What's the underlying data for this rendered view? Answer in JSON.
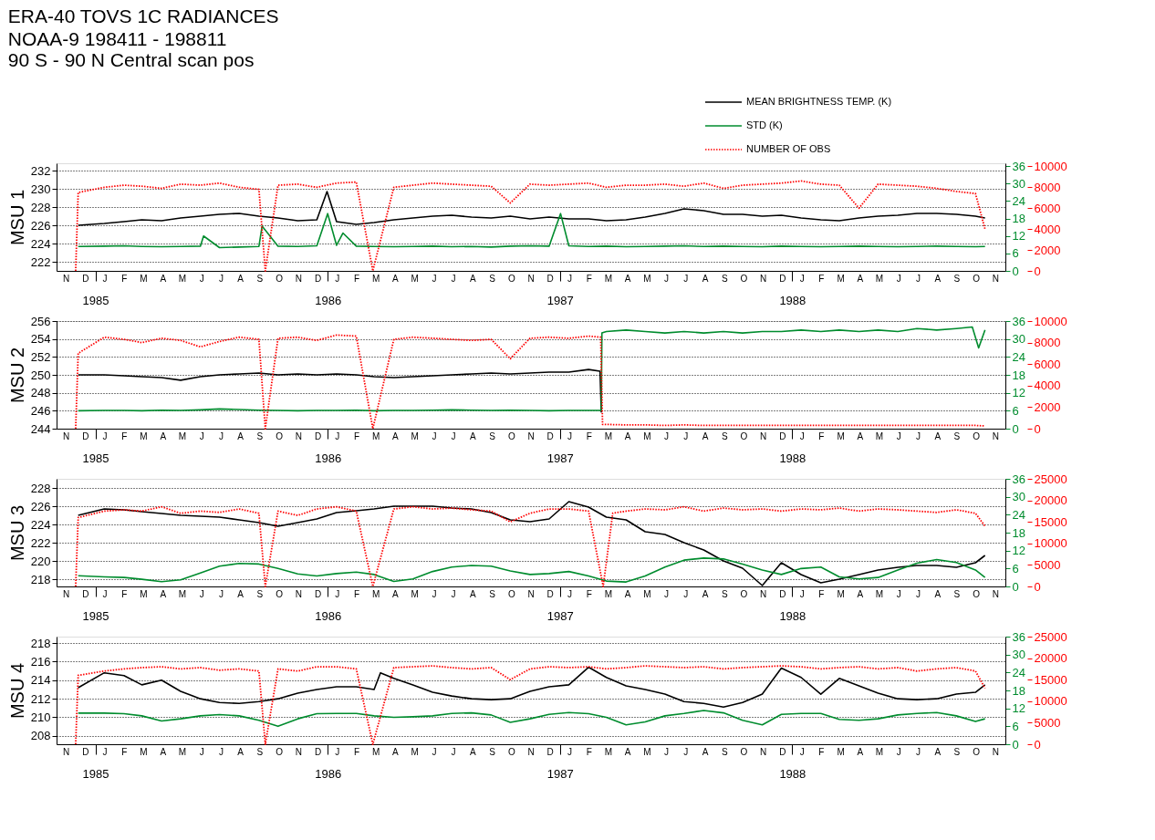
{
  "chart_data": [
    {
      "type": "line",
      "title": "ERA-40  TOVS 1C RADIANCES",
      "subtitle": "NOAA-9   198411 - 198811\n90 S - 90 N        Central scan pos",
      "ylabel": "MSU 1",
      "legend": "top right",
      "grid": "y",
      "marker": "none",
      "xlim": [
        "1984-11-01",
        "1988-12-01"
      ],
      "xticks": [
        {
          "value": "1985-01-01",
          "label": "1985"
        },
        {
          "value": "1986-01-01",
          "label": "1986"
        },
        {
          "value": "1987-01-01",
          "label": "1987"
        },
        {
          "value": "1988-01-01",
          "label": "1988"
        }
      ],
      "annotations": [
        "N",
        "D",
        "J",
        "F",
        "M",
        "A",
        "M",
        "J",
        "J",
        "A",
        "S",
        "O",
        "N",
        "D",
        "J",
        "F",
        "M",
        "A",
        "M",
        "J",
        "J",
        "A",
        "S",
        "O",
        "N",
        "D",
        "J",
        "F",
        "M",
        "A",
        "M",
        "J",
        "J",
        "A",
        "S",
        "O",
        "N",
        "D",
        "J",
        "F",
        "M",
        "A",
        "M",
        "J",
        "J",
        "A",
        "S",
        "O",
        "N"
      ],
      "ylim": [
        221,
        232.8
      ],
      "yticks": [
        222,
        224,
        226,
        228,
        230,
        232
      ],
      "y2lim": [
        0,
        37
      ],
      "y2ticks": [
        0,
        6,
        12,
        18,
        24,
        30,
        36
      ],
      "y3lim": [
        0,
        10300
      ],
      "y3ticks": [
        0,
        2000,
        4000,
        6000,
        8000,
        10000
      ],
      "series": [
        {
          "name": "MEAN BRIGHTNESS TEMP. (K)",
          "color": "#000000",
          "x": [
            "1984-12-05",
            "1985-01-15",
            "1985-02-15",
            "1985-03-15",
            "1985-04-15",
            "1985-05-15",
            "1985-06-15",
            "1985-07-15",
            "1985-08-15",
            "1985-09-15",
            "1985-10-15",
            "1985-11-15",
            "1985-12-15",
            "1985-12-31",
            "1986-01-15",
            "1986-02-15",
            "1986-03-15",
            "1986-04-15",
            "1986-05-15",
            "1986-06-15",
            "1986-07-15",
            "1986-08-15",
            "1986-09-15",
            "1986-10-15",
            "1986-11-15",
            "1986-12-15",
            "1987-01-15",
            "1987-02-15",
            "1987-03-15",
            "1987-04-15",
            "1987-05-15",
            "1987-06-15",
            "1987-07-15",
            "1987-08-15",
            "1987-09-15",
            "1987-10-15",
            "1987-11-15",
            "1987-12-15",
            "1988-01-15",
            "1988-02-15",
            "1988-03-15",
            "1988-04-15",
            "1988-05-15",
            "1988-06-15",
            "1988-07-15",
            "1988-08-15",
            "1988-09-15",
            "1988-10-15",
            "1988-10-30"
          ],
          "values": [
            226.0,
            226.2,
            226.4,
            226.6,
            226.5,
            226.8,
            227.0,
            227.2,
            227.3,
            227.0,
            226.8,
            226.5,
            226.6,
            229.7,
            226.4,
            226.1,
            226.3,
            226.6,
            226.8,
            227.0,
            227.1,
            226.9,
            226.8,
            227.0,
            226.7,
            226.9,
            226.7,
            226.7,
            226.5,
            226.6,
            226.9,
            227.3,
            227.8,
            227.6,
            227.2,
            227.2,
            227.0,
            227.1,
            226.8,
            226.6,
            226.5,
            226.8,
            227.0,
            227.1,
            227.3,
            227.3,
            227.2,
            227.0,
            226.8
          ]
        },
        {
          "name": "STD (K)",
          "color": "#008c2e",
          "axis": "y2",
          "x": [
            "1984-12-05",
            "1985-01-15",
            "1985-02-15",
            "1985-03-15",
            "1985-04-15",
            "1985-05-15",
            "1985-06-15",
            "1985-06-20",
            "1985-07-15",
            "1985-08-15",
            "1985-09-15",
            "1985-09-20",
            "1985-10-15",
            "1985-11-15",
            "1985-12-15",
            "1986-01-01",
            "1986-01-15",
            "1986-01-25",
            "1986-02-15",
            "1986-03-15",
            "1986-04-15",
            "1986-05-15",
            "1986-06-15",
            "1986-07-15",
            "1986-08-15",
            "1986-09-15",
            "1986-10-15",
            "1986-11-15",
            "1986-12-15",
            "1987-01-02",
            "1987-01-15",
            "1987-02-15",
            "1987-03-15",
            "1987-04-15",
            "1987-05-15",
            "1987-06-15",
            "1987-07-15",
            "1987-08-15",
            "1987-09-15",
            "1987-10-15",
            "1987-11-15",
            "1987-12-15",
            "1988-01-15",
            "1988-02-15",
            "1988-03-15",
            "1988-04-15",
            "1988-05-15",
            "1988-06-15",
            "1988-07-15",
            "1988-08-15",
            "1988-09-15",
            "1988-10-15",
            "1988-10-30"
          ],
          "values": [
            8.4,
            8.5,
            8.6,
            8.4,
            8.3,
            8.4,
            8.5,
            12.0,
            8.0,
            8.2,
            8.4,
            15.4,
            8.5,
            8.4,
            8.6,
            19.7,
            8.8,
            13.0,
            8.5,
            8.4,
            8.3,
            8.4,
            8.5,
            8.3,
            8.4,
            8.2,
            8.5,
            8.6,
            8.5,
            19.7,
            8.6,
            8.4,
            8.5,
            8.3,
            8.4,
            8.5,
            8.6,
            8.4,
            8.5,
            8.4,
            8.3,
            8.5,
            8.4,
            8.3,
            8.4,
            8.5,
            8.4,
            8.3,
            8.4,
            8.5,
            8.4,
            8.3,
            8.4
          ]
        },
        {
          "name": "NUMBER OF OBS",
          "color": "#ff0000",
          "axis": "y3",
          "line_style": "dotted",
          "x": [
            "1984-12-01",
            "1984-12-05",
            "1985-01-15",
            "1985-02-15",
            "1985-03-15",
            "1985-04-15",
            "1985-05-15",
            "1985-06-15",
            "1985-07-15",
            "1985-08-15",
            "1985-09-15",
            "1985-09-25",
            "1985-10-15",
            "1985-11-15",
            "1985-12-15",
            "1986-01-15",
            "1986-02-15",
            "1986-03-13",
            "1986-04-15",
            "1986-05-15",
            "1986-06-15",
            "1986-07-15",
            "1986-08-15",
            "1986-09-15",
            "1986-10-15",
            "1986-11-15",
            "1986-12-15",
            "1987-01-15",
            "1987-02-15",
            "1987-03-15",
            "1987-04-15",
            "1987-05-15",
            "1987-06-15",
            "1987-07-15",
            "1987-08-15",
            "1987-09-15",
            "1987-10-15",
            "1987-11-15",
            "1987-12-15",
            "1988-01-15",
            "1988-02-15",
            "1988-03-15",
            "1988-04-15",
            "1988-05-15",
            "1988-06-15",
            "1988-07-15",
            "1988-08-15",
            "1988-09-15",
            "1988-10-15",
            "1988-10-30"
          ],
          "values": [
            0,
            7500,
            8000,
            8200,
            8100,
            7900,
            8300,
            8200,
            8400,
            8000,
            7800,
            0,
            8200,
            8300,
            8000,
            8400,
            8500,
            0,
            8000,
            8200,
            8400,
            8300,
            8200,
            8100,
            6500,
            8300,
            8200,
            8300,
            8400,
            8000,
            8200,
            8200,
            8300,
            8100,
            8400,
            7900,
            8200,
            8300,
            8400,
            8600,
            8300,
            8200,
            6000,
            8300,
            8200,
            8100,
            7900,
            7600,
            7400,
            4000
          ]
        }
      ]
    },
    {
      "type": "line",
      "ylabel": "MSU 2",
      "grid": "y",
      "marker": "none",
      "xlim": [
        "1984-11-01",
        "1988-12-01"
      ],
      "xticks": [
        {
          "value": "1985-01-01",
          "label": "1985"
        },
        {
          "value": "1986-01-01",
          "label": "1986"
        },
        {
          "value": "1987-01-01",
          "label": "1987"
        },
        {
          "value": "1988-01-01",
          "label": "1988"
        }
      ],
      "annotations": [
        "N",
        "D",
        "J",
        "F",
        "M",
        "A",
        "M",
        "J",
        "J",
        "A",
        "S",
        "O",
        "N",
        "D",
        "J",
        "F",
        "M",
        "A",
        "M",
        "J",
        "J",
        "A",
        "S",
        "O",
        "N",
        "D",
        "J",
        "F",
        "M",
        "A",
        "M",
        "J",
        "J",
        "A",
        "S",
        "O",
        "N",
        "D",
        "J",
        "F",
        "M",
        "A",
        "M",
        "J",
        "J",
        "A",
        "S",
        "O",
        "N"
      ],
      "ylim": [
        244,
        256
      ],
      "yticks": [
        244,
        246,
        248,
        250,
        252,
        254,
        256
      ],
      "y2lim": [
        0,
        36
      ],
      "y2ticks": [
        0,
        6,
        12,
        18,
        24,
        30,
        36
      ],
      "y3lim": [
        0,
        10000
      ],
      "y3ticks": [
        0,
        2000,
        4000,
        6000,
        8000,
        10000
      ],
      "series": [
        {
          "color": "#000000",
          "x": [
            "1984-12-05",
            "1985-01-15",
            "1985-02-15",
            "1985-03-15",
            "1985-04-15",
            "1985-05-15",
            "1985-06-15",
            "1985-07-15",
            "1985-08-15",
            "1985-09-15",
            "1985-10-15",
            "1985-11-15",
            "1985-12-15",
            "1986-01-15",
            "1986-02-15",
            "1986-03-15",
            "1986-04-15",
            "1986-05-15",
            "1986-06-15",
            "1986-07-15",
            "1986-08-15",
            "1986-09-15",
            "1986-10-15",
            "1986-11-15",
            "1986-12-15",
            "1987-01-15",
            "1987-02-15",
            "1987-03-05",
            "1987-03-07"
          ],
          "values": [
            250.0,
            250.0,
            249.9,
            249.8,
            249.7,
            249.4,
            249.8,
            250.0,
            250.1,
            250.2,
            250.0,
            250.1,
            250.0,
            250.1,
            250.0,
            249.8,
            249.7,
            249.8,
            249.9,
            250.0,
            250.1,
            250.2,
            250.1,
            250.2,
            250.3,
            250.3,
            250.6,
            250.4,
            245.8
          ]
        },
        {
          "color": "#008c2e",
          "axis": "y2",
          "x": [
            "1984-12-05",
            "1985-01-15",
            "1985-02-15",
            "1985-03-15",
            "1985-04-15",
            "1985-05-15",
            "1985-06-15",
            "1985-07-15",
            "1985-08-15",
            "1985-09-15",
            "1985-10-15",
            "1985-11-15",
            "1985-12-15",
            "1986-01-15",
            "1986-02-15",
            "1986-03-15",
            "1986-04-15",
            "1986-05-15",
            "1986-06-15",
            "1986-07-15",
            "1986-08-15",
            "1986-09-15",
            "1986-10-15",
            "1986-11-15",
            "1986-12-15",
            "1987-01-15",
            "1987-02-15",
            "1987-03-07",
            "1987-03-08",
            "1987-03-15",
            "1987-04-15",
            "1987-05-15",
            "1987-06-15",
            "1987-07-15",
            "1987-08-15",
            "1987-09-15",
            "1987-10-15",
            "1987-11-15",
            "1987-12-15",
            "1988-01-15",
            "1988-02-15",
            "1988-03-15",
            "1988-04-15",
            "1988-05-15",
            "1988-06-15",
            "1988-07-15",
            "1988-08-15",
            "1988-09-15",
            "1988-10-10",
            "1988-10-20",
            "1988-10-30"
          ],
          "values": [
            6.0,
            6.1,
            6.1,
            6.0,
            6.2,
            6.1,
            6.3,
            6.6,
            6.4,
            6.2,
            6.1,
            6.0,
            6.1,
            6.1,
            6.2,
            6.0,
            6.1,
            6.1,
            6.2,
            6.3,
            6.2,
            6.1,
            6.2,
            6.1,
            6.0,
            6.1,
            6.1,
            6.1,
            32.0,
            32.5,
            33.0,
            32.5,
            32.0,
            32.5,
            32.0,
            32.5,
            32.0,
            32.5,
            32.5,
            33.0,
            32.5,
            33.0,
            32.5,
            33.0,
            32.5,
            33.5,
            33.0,
            33.5,
            34.0,
            27.0,
            33.0
          ]
        },
        {
          "color": "#ff0000",
          "axis": "y3",
          "line_style": "dotted",
          "x": [
            "1984-12-01",
            "1984-12-05",
            "1985-01-15",
            "1985-02-15",
            "1985-03-15",
            "1985-04-15",
            "1985-05-15",
            "1985-06-15",
            "1985-07-15",
            "1985-08-15",
            "1985-09-15",
            "1985-09-25",
            "1985-10-15",
            "1985-11-15",
            "1985-12-15",
            "1986-01-15",
            "1986-02-15",
            "1986-03-13",
            "1986-04-15",
            "1986-05-15",
            "1986-06-15",
            "1986-07-15",
            "1986-08-15",
            "1986-09-15",
            "1986-10-15",
            "1986-11-15",
            "1986-12-15",
            "1987-01-15",
            "1987-02-15",
            "1987-03-06",
            "1987-03-09",
            "1987-04-15",
            "1987-05-15",
            "1987-06-15",
            "1987-07-15",
            "1987-08-15",
            "1987-09-15",
            "1987-10-15",
            "1987-11-15",
            "1987-12-15",
            "1988-01-15",
            "1988-02-15",
            "1988-03-15",
            "1988-04-15",
            "1988-05-15",
            "1988-06-15",
            "1988-07-15",
            "1988-08-15",
            "1988-09-15",
            "1988-10-15",
            "1988-10-30"
          ],
          "values": [
            0,
            7000,
            8500,
            8300,
            8000,
            8400,
            8200,
            7600,
            8100,
            8500,
            8300,
            0,
            8400,
            8500,
            8200,
            8700,
            8600,
            0,
            8300,
            8500,
            8400,
            8300,
            8200,
            8300,
            6500,
            8400,
            8500,
            8400,
            8600,
            8500,
            400,
            350,
            350,
            300,
            350,
            300,
            300,
            300,
            300,
            300,
            300,
            300,
            300,
            300,
            300,
            300,
            300,
            300,
            300,
            300,
            250
          ]
        }
      ]
    },
    {
      "type": "line",
      "ylabel": "MSU 3",
      "grid": "y",
      "marker": "none",
      "xlim": [
        "1984-11-01",
        "1988-12-01"
      ],
      "xticks": [
        {
          "value": "1985-01-01",
          "label": "1985"
        },
        {
          "value": "1986-01-01",
          "label": "1986"
        },
        {
          "value": "1987-01-01",
          "label": "1987"
        },
        {
          "value": "1988-01-01",
          "label": "1988"
        }
      ],
      "annotations": [
        "N",
        "D",
        "J",
        "F",
        "M",
        "A",
        "M",
        "J",
        "J",
        "A",
        "S",
        "O",
        "N",
        "D",
        "J",
        "F",
        "M",
        "A",
        "M",
        "J",
        "J",
        "A",
        "S",
        "O",
        "N",
        "D",
        "J",
        "F",
        "M",
        "A",
        "M",
        "J",
        "J",
        "A",
        "S",
        "O",
        "N",
        "D",
        "J",
        "F",
        "M",
        "A",
        "M",
        "J",
        "J",
        "A",
        "S",
        "O",
        "N"
      ],
      "ylim": [
        217.2,
        229
      ],
      "yticks": [
        218,
        220,
        222,
        224,
        226,
        228
      ],
      "y2lim": [
        0,
        36
      ],
      "y2ticks": [
        0,
        6,
        12,
        18,
        24,
        30,
        36
      ],
      "y3lim": [
        0,
        25000
      ],
      "y3ticks": [
        0,
        5000,
        10000,
        15000,
        20000,
        25000
      ],
      "series": [
        {
          "color": "#000000",
          "x": [
            "1984-12-05",
            "1985-01-15",
            "1985-02-15",
            "1985-03-15",
            "1985-04-15",
            "1985-05-15",
            "1985-06-15",
            "1985-07-15",
            "1985-08-15",
            "1985-09-15",
            "1985-10-15",
            "1985-11-15",
            "1985-12-15",
            "1986-01-15",
            "1986-02-15",
            "1986-03-15",
            "1986-04-15",
            "1986-05-15",
            "1986-06-15",
            "1986-07-15",
            "1986-08-15",
            "1986-09-15",
            "1986-10-15",
            "1986-11-15",
            "1986-12-15",
            "1987-01-15",
            "1987-02-15",
            "1987-03-15",
            "1987-04-15",
            "1987-05-15",
            "1987-06-15",
            "1987-07-15",
            "1987-08-15",
            "1987-09-15",
            "1987-10-15",
            "1987-11-15",
            "1987-12-15",
            "1988-01-15",
            "1988-02-15",
            "1988-03-15",
            "1988-04-15",
            "1988-05-15",
            "1988-06-15",
            "1988-07-15",
            "1988-08-15",
            "1988-09-15",
            "1988-10-15",
            "1988-10-30"
          ],
          "values": [
            225.0,
            225.7,
            225.6,
            225.4,
            225.2,
            225.0,
            224.9,
            224.8,
            224.5,
            224.2,
            223.8,
            224.2,
            224.6,
            225.3,
            225.5,
            225.7,
            226.0,
            226.0,
            226.0,
            225.8,
            225.7,
            225.3,
            224.5,
            224.3,
            224.6,
            226.5,
            225.9,
            224.8,
            224.5,
            223.2,
            222.9,
            222.0,
            221.2,
            220.0,
            219.2,
            217.3,
            219.8,
            218.5,
            217.6,
            218.0,
            218.5,
            219.0,
            219.3,
            219.5,
            219.5,
            219.3,
            219.8,
            220.6
          ]
        },
        {
          "color": "#008c2e",
          "axis": "y2",
          "x": [
            "1984-12-05",
            "1985-01-15",
            "1985-02-15",
            "1985-03-15",
            "1985-04-15",
            "1985-05-15",
            "1985-06-15",
            "1985-07-15",
            "1985-08-15",
            "1985-09-15",
            "1985-10-15",
            "1985-11-15",
            "1985-12-15",
            "1986-01-15",
            "1986-02-15",
            "1986-03-15",
            "1986-04-15",
            "1986-05-15",
            "1986-06-15",
            "1986-07-15",
            "1986-08-15",
            "1986-09-15",
            "1986-10-15",
            "1986-11-15",
            "1986-12-15",
            "1987-01-15",
            "1987-02-15",
            "1987-03-15",
            "1987-04-15",
            "1987-05-15",
            "1987-06-15",
            "1987-07-15",
            "1987-08-15",
            "1987-09-15",
            "1987-10-15",
            "1987-11-15",
            "1987-12-15",
            "1988-01-15",
            "1988-02-15",
            "1988-03-15",
            "1988-04-15",
            "1988-05-15",
            "1988-06-15",
            "1988-07-15",
            "1988-08-15",
            "1988-09-15",
            "1988-10-15",
            "1988-10-30"
          ],
          "values": [
            3.6,
            3.2,
            3.0,
            2.4,
            1.6,
            2.2,
            4.5,
            6.8,
            7.7,
            7.5,
            6.0,
            4.2,
            3.5,
            4.3,
            4.8,
            4.0,
            1.7,
            2.5,
            5.0,
            6.5,
            7.0,
            6.8,
            5.2,
            4.0,
            4.3,
            5.0,
            3.5,
            1.8,
            1.5,
            3.5,
            6.5,
            8.8,
            9.5,
            9.2,
            7.5,
            5.5,
            4.0,
            6.0,
            6.5,
            3.2,
            2.5,
            3.0,
            5.5,
            7.8,
            9.0,
            8.0,
            5.5,
            3.0
          ]
        },
        {
          "color": "#ff0000",
          "axis": "y3",
          "line_style": "dotted",
          "x": [
            "1984-12-01",
            "1984-12-05",
            "1985-01-15",
            "1985-02-15",
            "1985-03-15",
            "1985-04-15",
            "1985-05-15",
            "1985-06-15",
            "1985-07-15",
            "1985-08-15",
            "1985-09-15",
            "1985-09-25",
            "1985-10-15",
            "1985-11-15",
            "1985-12-15",
            "1986-01-15",
            "1986-02-15",
            "1986-03-13",
            "1986-04-15",
            "1986-05-15",
            "1986-06-15",
            "1986-07-15",
            "1986-08-15",
            "1986-09-15",
            "1986-10-15",
            "1986-11-15",
            "1986-12-15",
            "1987-01-15",
            "1987-02-15",
            "1987-03-10",
            "1987-03-25",
            "1987-04-15",
            "1987-05-15",
            "1987-06-15",
            "1987-07-15",
            "1987-08-15",
            "1987-09-15",
            "1987-10-15",
            "1987-11-15",
            "1987-12-15",
            "1988-01-15",
            "1988-02-15",
            "1988-03-15",
            "1988-04-15",
            "1988-05-15",
            "1988-06-15",
            "1988-07-15",
            "1988-08-15",
            "1988-09-15",
            "1988-10-15",
            "1988-10-30"
          ],
          "values": [
            0,
            16000,
            17500,
            17800,
            17500,
            18500,
            17000,
            17500,
            17200,
            18000,
            17000,
            0,
            17500,
            16500,
            18000,
            18500,
            17500,
            0,
            18000,
            18500,
            18000,
            18200,
            17800,
            17500,
            15000,
            17000,
            18000,
            18000,
            17500,
            0,
            17000,
            17500,
            18000,
            17800,
            18500,
            17500,
            18200,
            17800,
            18000,
            17500,
            18000,
            17800,
            18200,
            17500,
            18000,
            17800,
            17500,
            17200,
            17800,
            17000,
            14000
          ]
        }
      ]
    },
    {
      "type": "line",
      "ylabel": "MSU 4",
      "grid": "y",
      "marker": "none",
      "xlim": [
        "1984-11-01",
        "1988-12-01"
      ],
      "xticks": [
        {
          "value": "1985-01-01",
          "label": "1985"
        },
        {
          "value": "1986-01-01",
          "label": "1986"
        },
        {
          "value": "1987-01-01",
          "label": "1987"
        },
        {
          "value": "1988-01-01",
          "label": "1988"
        }
      ],
      "annotations": [
        "N",
        "D",
        "J",
        "F",
        "M",
        "A",
        "M",
        "J",
        "J",
        "A",
        "S",
        "O",
        "N",
        "D",
        "J",
        "F",
        "M",
        "A",
        "M",
        "J",
        "J",
        "A",
        "S",
        "O",
        "N",
        "D",
        "J",
        "F",
        "M",
        "A",
        "M",
        "J",
        "J",
        "A",
        "S",
        "O",
        "N",
        "D",
        "J",
        "F",
        "M",
        "A",
        "M",
        "J",
        "J",
        "A",
        "S",
        "O",
        "N"
      ],
      "ylim": [
        207.1,
        218.7
      ],
      "yticks": [
        208,
        210,
        212,
        214,
        216,
        218
      ],
      "y2lim": [
        0,
        36
      ],
      "y2ticks": [
        0,
        6,
        12,
        18,
        24,
        30,
        36
      ],
      "y3lim": [
        0,
        25000
      ],
      "y3ticks": [
        0,
        5000,
        10000,
        15000,
        20000,
        25000
      ],
      "series": [
        {
          "color": "#000000",
          "x": [
            "1984-12-05",
            "1985-01-15",
            "1985-02-15",
            "1985-03-15",
            "1985-04-15",
            "1985-05-15",
            "1985-06-15",
            "1985-07-15",
            "1985-08-15",
            "1985-09-15",
            "1985-10-15",
            "1985-11-15",
            "1985-12-15",
            "1986-01-15",
            "1986-02-15",
            "1986-03-15",
            "1986-03-25",
            "1986-04-15",
            "1986-05-15",
            "1986-06-15",
            "1986-07-15",
            "1986-08-15",
            "1986-09-15",
            "1986-10-15",
            "1986-11-15",
            "1986-12-15",
            "1987-01-15",
            "1987-02-15",
            "1987-03-15",
            "1987-04-15",
            "1987-05-15",
            "1987-06-15",
            "1987-07-15",
            "1987-08-15",
            "1987-09-15",
            "1987-10-15",
            "1987-11-15",
            "1987-12-15",
            "1988-01-15",
            "1988-02-15",
            "1988-03-15",
            "1988-04-15",
            "1988-05-15",
            "1988-06-15",
            "1988-07-15",
            "1988-08-15",
            "1988-09-15",
            "1988-10-15",
            "1988-10-30"
          ],
          "values": [
            213.2,
            214.8,
            214.5,
            213.5,
            214.0,
            212.8,
            212.0,
            211.6,
            211.5,
            211.7,
            212.0,
            212.6,
            213.0,
            213.3,
            213.3,
            213.0,
            214.8,
            214.2,
            213.5,
            212.7,
            212.3,
            212.0,
            211.9,
            212.0,
            212.8,
            213.3,
            213.5,
            215.4,
            214.3,
            213.4,
            213.0,
            212.5,
            211.7,
            211.5,
            211.1,
            211.6,
            212.5,
            215.3,
            214.3,
            212.5,
            214.2,
            213.4,
            212.6,
            212.0,
            211.9,
            212.0,
            212.5,
            212.7,
            213.5
          ]
        },
        {
          "color": "#008c2e",
          "axis": "y2",
          "x": [
            "1984-12-05",
            "1985-01-15",
            "1985-02-15",
            "1985-03-15",
            "1985-04-15",
            "1985-05-15",
            "1985-06-15",
            "1985-07-15",
            "1985-08-15",
            "1985-09-15",
            "1985-10-15",
            "1985-11-15",
            "1985-12-15",
            "1986-01-15",
            "1986-02-15",
            "1986-03-15",
            "1986-04-15",
            "1986-05-15",
            "1986-06-15",
            "1986-07-15",
            "1986-08-15",
            "1986-09-15",
            "1986-10-15",
            "1986-11-15",
            "1986-12-15",
            "1987-01-15",
            "1987-02-15",
            "1987-03-15",
            "1987-04-15",
            "1987-05-15",
            "1987-06-15",
            "1987-07-15",
            "1987-08-15",
            "1987-09-15",
            "1987-10-15",
            "1987-11-15",
            "1987-12-15",
            "1988-01-15",
            "1988-02-15",
            "1988-03-15",
            "1988-04-15",
            "1988-05-15",
            "1988-06-15",
            "1988-07-15",
            "1988-08-15",
            "1988-09-15",
            "1988-10-15",
            "1988-10-30"
          ],
          "values": [
            10.4,
            10.4,
            10.2,
            9.5,
            7.8,
            8.5,
            9.5,
            9.9,
            9.5,
            8.0,
            6.0,
            8.5,
            10.2,
            10.3,
            10.3,
            9.5,
            9.0,
            9.2,
            9.5,
            10.3,
            10.5,
            9.8,
            7.3,
            8.5,
            10.0,
            10.6,
            10.2,
            9.0,
            6.5,
            7.5,
            9.5,
            10.3,
            11.3,
            10.5,
            8.0,
            6.5,
            10.0,
            10.3,
            10.3,
            8.3,
            8.0,
            8.5,
            9.8,
            10.3,
            10.6,
            9.5,
            7.6,
            8.5
          ]
        },
        {
          "color": "#ff0000",
          "axis": "y3",
          "line_style": "dotted",
          "x": [
            "1984-12-01",
            "1984-12-05",
            "1985-01-15",
            "1985-02-15",
            "1985-03-15",
            "1985-04-15",
            "1985-05-15",
            "1985-06-15",
            "1985-07-15",
            "1985-08-15",
            "1985-09-15",
            "1985-09-25",
            "1985-10-15",
            "1985-11-15",
            "1985-12-15",
            "1986-01-15",
            "1986-02-15",
            "1986-03-13",
            "1986-04-15",
            "1986-05-15",
            "1986-06-15",
            "1986-07-15",
            "1986-08-15",
            "1986-09-15",
            "1986-10-15",
            "1986-11-15",
            "1986-12-15",
            "1987-01-15",
            "1987-02-15",
            "1987-03-15",
            "1987-04-15",
            "1987-05-15",
            "1987-06-15",
            "1987-07-15",
            "1987-08-15",
            "1987-09-15",
            "1987-10-15",
            "1987-11-15",
            "1987-12-15",
            "1988-01-15",
            "1988-02-15",
            "1988-03-15",
            "1988-04-15",
            "1988-05-15",
            "1988-06-15",
            "1988-07-15",
            "1988-08-15",
            "1988-09-15",
            "1988-10-15",
            "1988-10-30"
          ],
          "values": [
            0,
            16000,
            17000,
            17500,
            17800,
            18000,
            17500,
            17800,
            17200,
            17500,
            17000,
            0,
            17500,
            17000,
            18000,
            18000,
            17500,
            0,
            17800,
            18000,
            18200,
            17800,
            17500,
            17800,
            15000,
            17500,
            18000,
            17800,
            18000,
            17500,
            17800,
            18200,
            18000,
            17800,
            18000,
            17500,
            17800,
            18000,
            18200,
            18000,
            17500,
            17800,
            18000,
            17500,
            17800,
            17000,
            17500,
            17800,
            17000,
            13000
          ]
        }
      ]
    }
  ]
}
